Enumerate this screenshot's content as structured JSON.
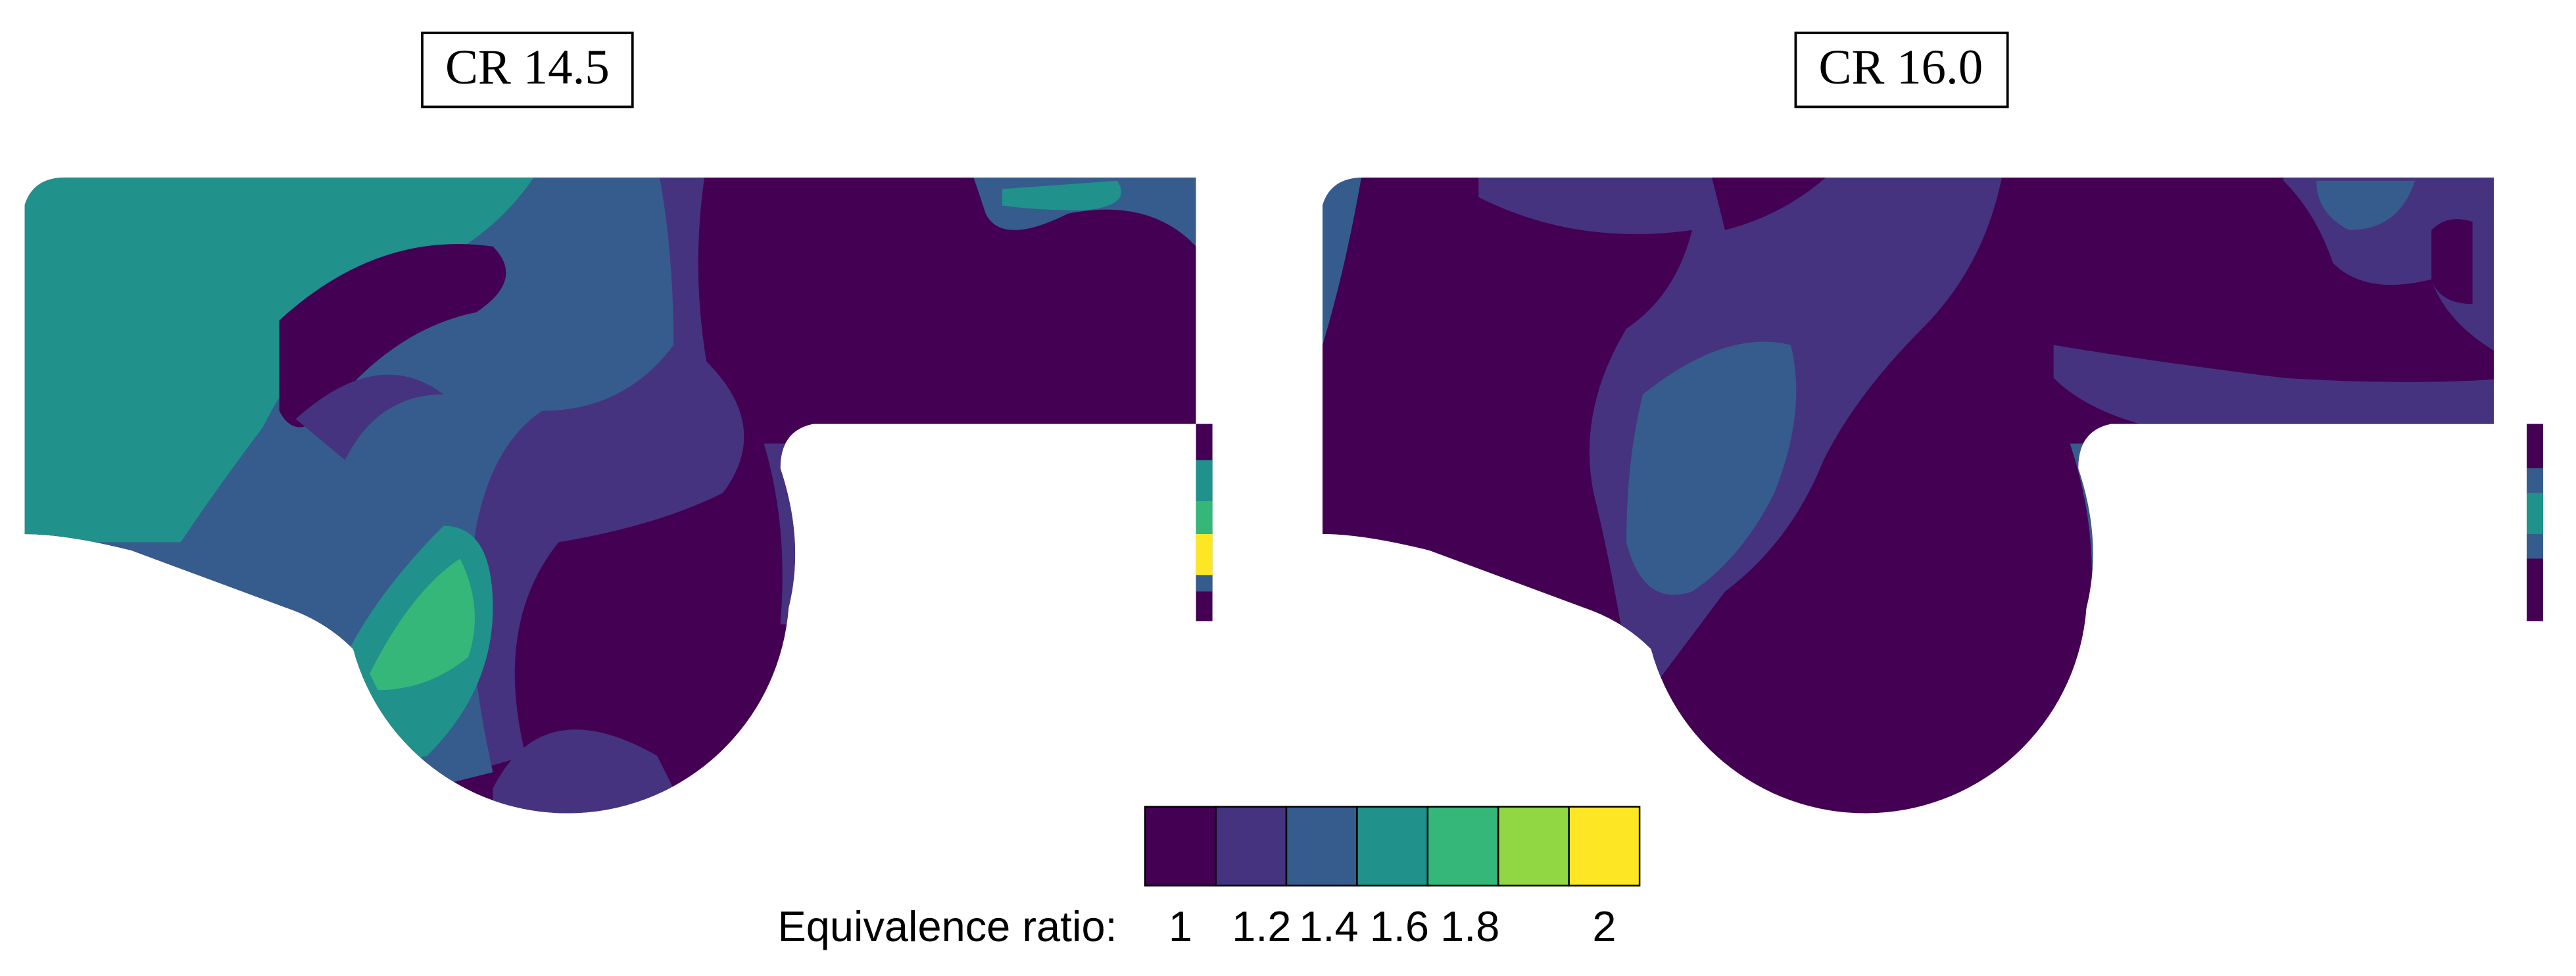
{
  "panels": [
    {
      "title": "CR 14.5"
    },
    {
      "title": "CR 16.0"
    }
  ],
  "colorbar": {
    "label": "Equivalence ratio:",
    "colors": [
      "#440154",
      "#46337f",
      "#365c8d",
      "#21918c",
      "#35b779",
      "#90d743",
      "#fde725"
    ],
    "ticks": [
      1,
      1.2,
      1.4,
      1.6,
      1.8,
      2
    ]
  }
}
